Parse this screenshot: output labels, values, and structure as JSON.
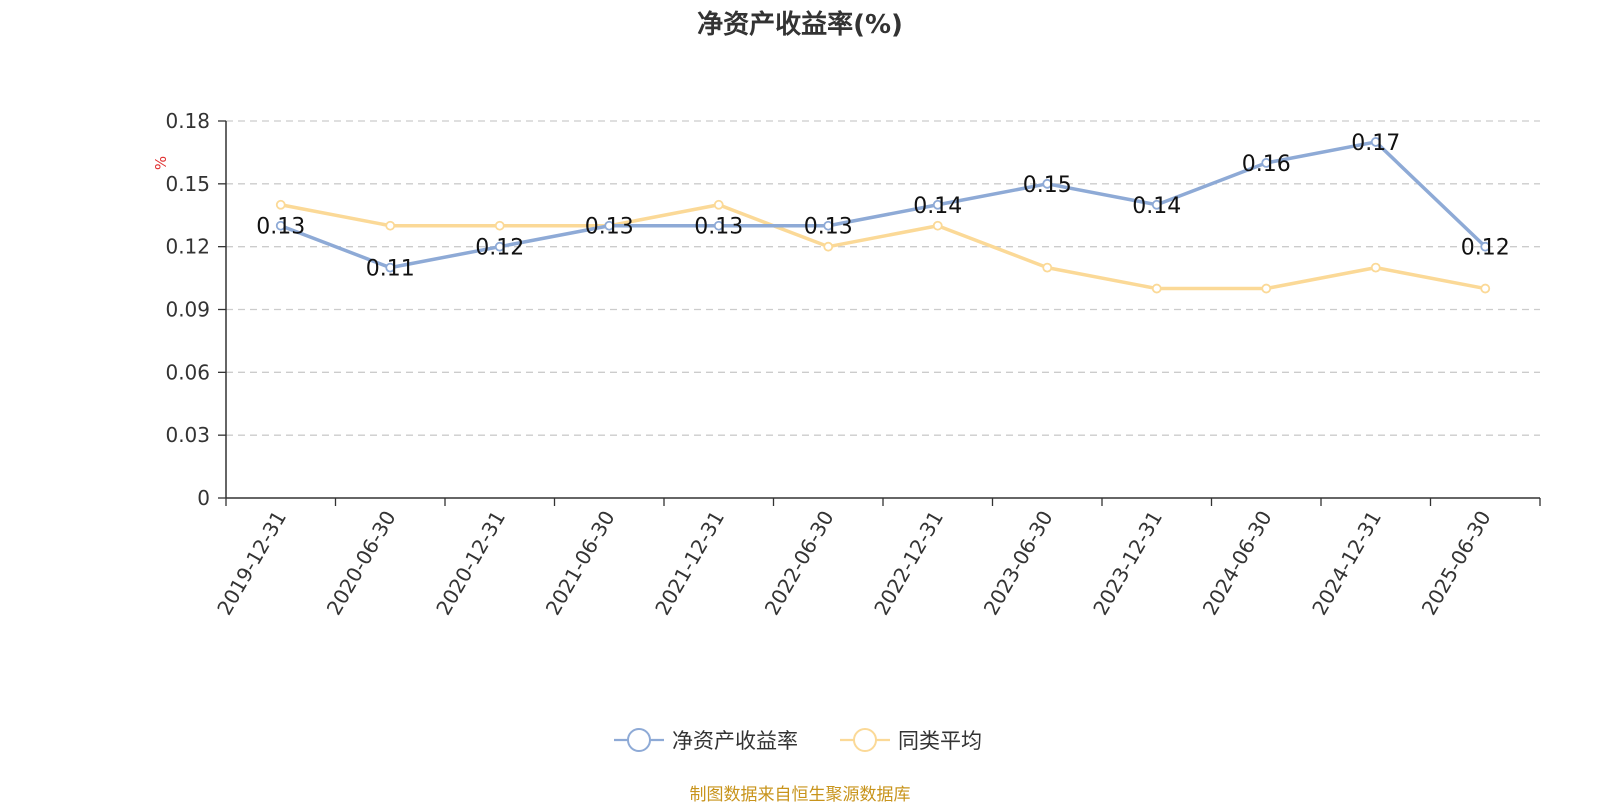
{
  "title": "净资产收益率(%)",
  "source": "制图数据来自恒生聚源数据库",
  "chart_data": {
    "type": "line",
    "title": "净资产收益率(%)",
    "ylabel": "%",
    "ylim": [
      0,
      0.18
    ],
    "yticks": [
      0,
      0.03,
      0.06,
      0.09,
      0.12,
      0.15,
      0.18
    ],
    "ytick_labels": [
      "0",
      "0.03",
      "0.06",
      "0.09",
      "0.12",
      "0.15",
      "0.18"
    ],
    "categories": [
      "2019-12-31",
      "2020-06-30",
      "2020-12-31",
      "2021-06-30",
      "2021-12-31",
      "2022-06-30",
      "2022-12-31",
      "2023-06-30",
      "2023-12-31",
      "2024-06-30",
      "2024-12-31",
      "2025-06-30"
    ],
    "grid": true,
    "legend_position": "bottom",
    "series": [
      {
        "name": "净资产收益率",
        "color": "#8eaad6",
        "values": [
          0.13,
          0.11,
          0.12,
          0.13,
          0.13,
          0.13,
          0.14,
          0.15,
          0.14,
          0.16,
          0.17,
          0.12
        ],
        "labels": [
          "0.13",
          "0.11",
          "0.12",
          "0.13",
          "0.13",
          "0.13",
          "0.14",
          "0.15",
          "0.14",
          "0.16",
          "0.17",
          "0.12"
        ]
      },
      {
        "name": "同类平均",
        "color": "#fbd997",
        "values": [
          0.14,
          0.13,
          0.13,
          0.13,
          0.14,
          0.12,
          0.13,
          0.11,
          0.1,
          0.1,
          0.11,
          0.1
        ]
      }
    ]
  }
}
